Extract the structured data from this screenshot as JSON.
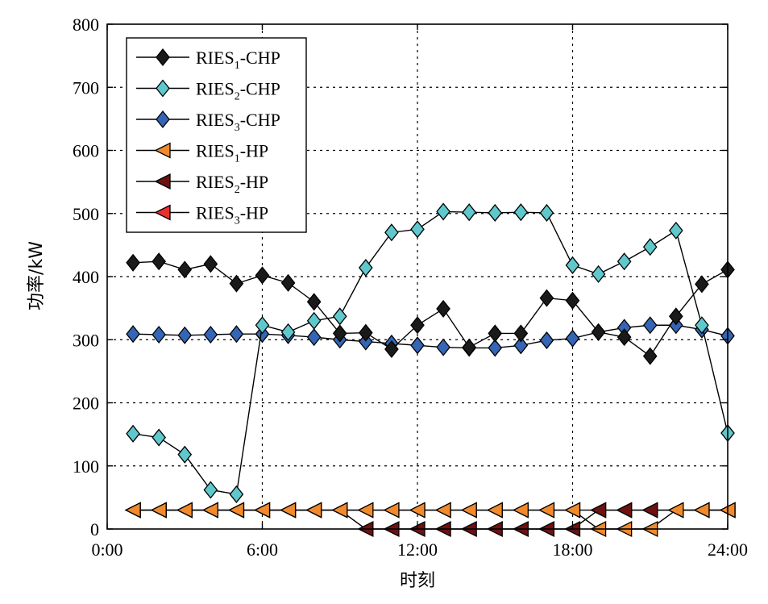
{
  "chart_data": {
    "type": "line",
    "xlabel": "时刻",
    "ylabel": "功率/kW",
    "xlim": [
      0,
      24
    ],
    "ylim": [
      0,
      800
    ],
    "grid": true,
    "legend_position": "top-left",
    "x_ticks": [
      {
        "value": 0,
        "label": "0:00"
      },
      {
        "value": 6,
        "label": "6:00"
      },
      {
        "value": 12,
        "label": "12:00"
      },
      {
        "value": 18,
        "label": "18:00"
      },
      {
        "value": 24,
        "label": "24:00"
      }
    ],
    "y_ticks": [
      0,
      100,
      200,
      300,
      400,
      500,
      600,
      700,
      800
    ],
    "x": [
      1,
      2,
      3,
      4,
      5,
      6,
      7,
      8,
      9,
      10,
      11,
      12,
      13,
      14,
      15,
      16,
      17,
      18,
      19,
      20,
      21,
      22,
      23,
      24
    ],
    "series": [
      {
        "name": "RIES1-CHP",
        "name_base": "RIES",
        "name_sub": "1",
        "name_suffix": "-CHP",
        "color": "#1a1a1a",
        "marker": "diamond",
        "values": [
          422,
          424,
          411,
          420,
          389,
          402,
          390,
          360,
          310,
          311,
          285,
          323,
          349,
          288,
          310,
          310,
          366,
          362,
          312,
          304,
          274,
          337,
          388,
          411
        ]
      },
      {
        "name": "RIES2-CHP",
        "name_base": "RIES",
        "name_sub": "2",
        "name_suffix": "-CHP",
        "color": "#5fc8cc",
        "marker": "diamond",
        "values": [
          151,
          145,
          118,
          62,
          55,
          323,
          312,
          330,
          337,
          414,
          470,
          475,
          503,
          502,
          501,
          502,
          501,
          418,
          404,
          424,
          447,
          473,
          323,
          152
        ]
      },
      {
        "name": "RIES3-CHP",
        "name_base": "RIES",
        "name_sub": "3",
        "name_suffix": "-CHP",
        "color": "#3565b5",
        "marker": "diamond",
        "values": [
          309,
          308,
          307,
          308,
          309,
          309,
          307,
          304,
          300,
          297,
          294,
          291,
          288,
          287,
          287,
          291,
          299,
          302,
          312,
          319,
          323,
          323,
          316,
          306
        ]
      },
      {
        "name": "RIES1-HP",
        "name_base": "RIES",
        "name_sub": "1",
        "name_suffix": "-HP",
        "color": "#f08a2c",
        "marker": "triangle-left",
        "values": [
          30,
          30,
          30,
          30,
          30,
          30,
          30,
          30,
          30,
          30,
          30,
          30,
          30,
          30,
          30,
          30,
          30,
          30,
          0,
          0,
          0,
          30,
          30,
          30
        ]
      },
      {
        "name": "RIES2-HP",
        "name_base": "RIES",
        "name_sub": "2",
        "name_suffix": "-HP",
        "color": "#6b1212",
        "marker": "triangle-left",
        "values": [
          30,
          30,
          30,
          30,
          30,
          30,
          30,
          30,
          30,
          0,
          0,
          0,
          0,
          0,
          0,
          0,
          0,
          0,
          30,
          30,
          30,
          30,
          30,
          30
        ]
      },
      {
        "name": "RIES3-HP",
        "name_base": "RIES",
        "name_sub": "3",
        "name_suffix": "-HP",
        "color": "#e8302c",
        "marker": "triangle-left",
        "values": [
          30,
          30,
          30,
          30,
          30,
          30,
          30,
          30,
          30,
          30,
          30,
          30,
          30,
          30,
          30,
          30,
          30,
          30,
          30,
          30,
          30,
          30,
          30,
          30
        ]
      }
    ]
  }
}
